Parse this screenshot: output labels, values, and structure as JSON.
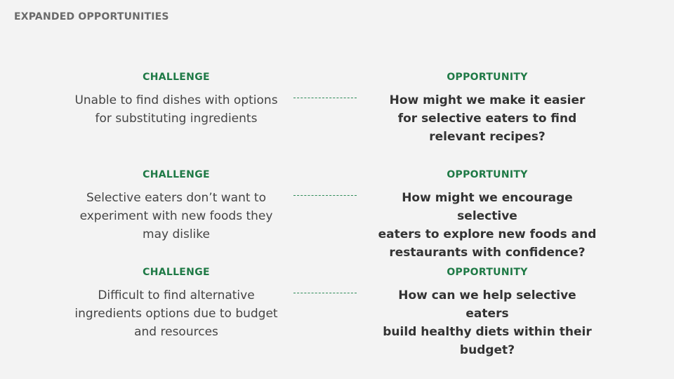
{
  "header": {
    "title": "EXPANDED OPPORTUNITIES"
  },
  "rows": [
    {
      "challenge_label": "CHALLENGE",
      "challenge_text": "Unable to find dishes with options\nfor substituting ingredients",
      "opportunity_label": "OPPORTUNITY",
      "opportunity_text": "How might we make it easier\nfor selective eaters to find\nrelevant recipes?"
    },
    {
      "challenge_label": "CHALLENGE",
      "challenge_text": "Selective eaters don’t want to\nexperiment with new foods they\nmay dislike",
      "opportunity_label": "OPPORTUNITY",
      "opportunity_text": "How might we encourage selective\neaters to explore new foods and\nrestaurants with confidence?"
    },
    {
      "challenge_label": "CHALLENGE",
      "challenge_text": "Difficult to find alternative\ningredients options due to budget\nand resources",
      "opportunity_label": "OPPORTUNITY",
      "opportunity_text": "How can we help selective eaters\nbuild healthy diets within their\nbudget?"
    }
  ],
  "colors": {
    "background": "#f3f3f3",
    "accent_green": "#1f7a46",
    "title_gray": "#6a6a6a",
    "body_text": "#333333"
  }
}
